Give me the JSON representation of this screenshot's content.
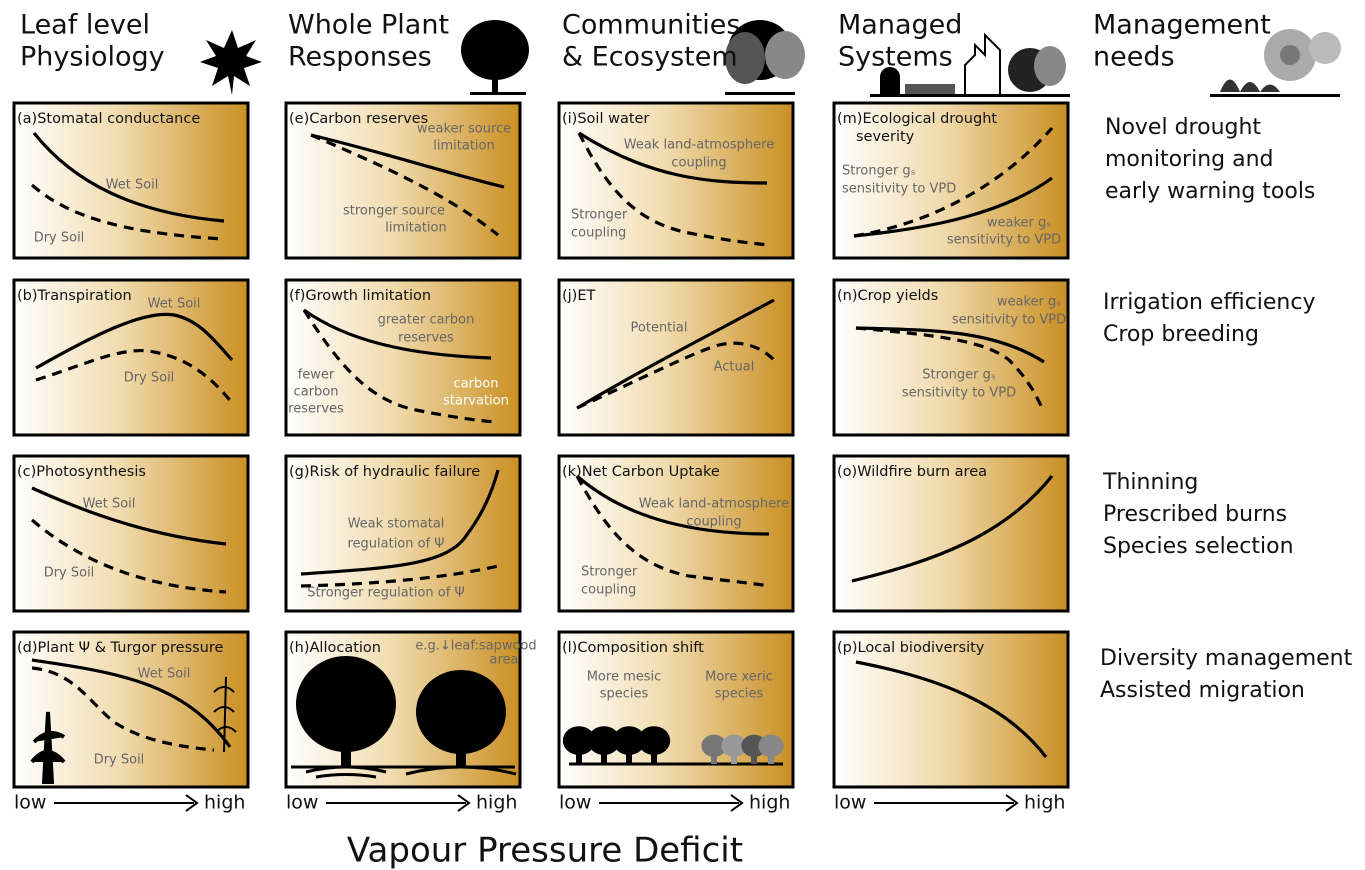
{
  "columns": [
    {
      "title": [
        "Leaf level",
        "Physiology"
      ]
    },
    {
      "title": [
        "Whole Plant",
        "Responses"
      ]
    },
    {
      "title": [
        "Communities",
        "& Ecosystem"
      ]
    },
    {
      "title": [
        "Managed",
        "Systems"
      ]
    },
    {
      "title": [
        "Management",
        "needs"
      ]
    }
  ],
  "panels": [
    {
      "label": "(a)",
      "title": [
        "Stomatal conductance"
      ],
      "annotations": [
        "Wet Soil",
        "Dry Soil"
      ]
    },
    {
      "label": "(b)",
      "title": [
        "Transpiration"
      ],
      "annotations": [
        "Wet Soil",
        "Dry Soil"
      ]
    },
    {
      "label": "(c)",
      "title": [
        "Photosynthesis"
      ],
      "annotations": [
        "Wet Soil",
        "Dry Soil"
      ]
    },
    {
      "label": "(d)",
      "title": [
        "Plant Ψ & Turgor pressure"
      ],
      "annotations": [
        "Wet Soil",
        "Dry Soil"
      ]
    },
    {
      "label": "(e)",
      "title": [
        "Carbon reserves"
      ],
      "annotations": [
        "weaker source",
        "limitation",
        "stronger source",
        "limitation"
      ]
    },
    {
      "label": "(f)",
      "title": [
        "Growth limitation"
      ],
      "annotations": [
        "greater carbon",
        "reserves",
        "fewer",
        "carbon",
        "reserves",
        "carbon",
        "starvation"
      ]
    },
    {
      "label": "(g)",
      "title": [
        "Risk of hydraulic failure"
      ],
      "annotations": [
        "Weak stomatal",
        "regulation of Ψ",
        "Stronger regulation of Ψ"
      ]
    },
    {
      "label": "(h)",
      "title": [
        "Allocation"
      ],
      "annotations": [
        "e.g.↓leaf:sapwood",
        "area"
      ]
    },
    {
      "label": "(i)",
      "title": [
        "Soil water"
      ],
      "annotations": [
        "Weak land-atmosphere",
        "coupling",
        "Stronger",
        "coupling"
      ]
    },
    {
      "label": "(j)",
      "title": [
        "ET"
      ],
      "annotations": [
        "Potential",
        "Actual"
      ]
    },
    {
      "label": "(k)",
      "title": [
        "Net Carbon Uptake"
      ],
      "annotations": [
        "Weak land-atmosphere",
        "coupling",
        "Stronger",
        "coupling"
      ]
    },
    {
      "label": "(l)",
      "title": [
        "Composition shift"
      ],
      "annotations": [
        "More mesic",
        "species",
        "More xeric",
        "species"
      ]
    },
    {
      "label": "(m)",
      "title": [
        "Ecological drought",
        "severity"
      ],
      "annotations": [
        "Stronger gₛ",
        "sensitivity to VPD",
        "weaker gₛ",
        "sensitivity to VPD"
      ]
    },
    {
      "label": "(n)",
      "title": [
        "Crop yields"
      ],
      "annotations": [
        "weaker gₛ",
        "sensitivity to VPD",
        "Stronger gₛ",
        "sensitivity to VPD"
      ]
    },
    {
      "label": "(o)",
      "title": [
        "Wildfire burn area"
      ],
      "annotations": []
    },
    {
      "label": "(p)",
      "title": [
        "Local biodiversity"
      ],
      "annotations": []
    }
  ],
  "management_needs": [
    [
      "Novel drought",
      "monitoring and",
      "early warning tools"
    ],
    [
      "Irrigation efficiency",
      "Crop breeding"
    ],
    [
      "Thinning",
      "Prescribed burns",
      "Species selection"
    ],
    [
      "Diversity management",
      "Assisted migration"
    ]
  ],
  "axis": {
    "low": "low",
    "high": "high"
  },
  "x_axis_title": "Vapour Pressure Deficit"
}
